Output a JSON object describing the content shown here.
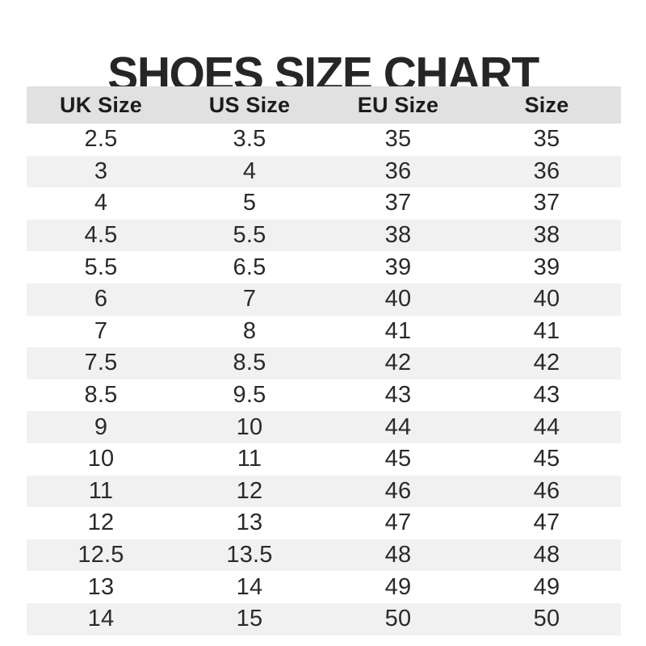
{
  "title": "SHOES SIZE CHART",
  "colors": {
    "header_bg": "#e1e1e1",
    "stripe_bg": "#f1f1f1",
    "row_bg": "#ffffff",
    "title_text": "#262626",
    "body_text": "#2a2a2e"
  },
  "chart_data": {
    "type": "table",
    "title": "SHOES SIZE CHART",
    "columns": [
      "UK Size",
      "US Size",
      "EU Size",
      "Size"
    ],
    "rows": [
      [
        "2.5",
        "3.5",
        "35",
        "35"
      ],
      [
        "3",
        "4",
        "36",
        "36"
      ],
      [
        "4",
        "5",
        "37",
        "37"
      ],
      [
        "4.5",
        "5.5",
        "38",
        "38"
      ],
      [
        "5.5",
        "6.5",
        "39",
        "39"
      ],
      [
        "6",
        "7",
        "40",
        "40"
      ],
      [
        "7",
        "8",
        "41",
        "41"
      ],
      [
        "7.5",
        "8.5",
        "42",
        "42"
      ],
      [
        "8.5",
        "9.5",
        "43",
        "43"
      ],
      [
        "9",
        "10",
        "44",
        "44"
      ],
      [
        "10",
        "11",
        "45",
        "45"
      ],
      [
        "11",
        "12",
        "46",
        "46"
      ],
      [
        "12",
        "13",
        "47",
        "47"
      ],
      [
        "12.5",
        "13.5",
        "48",
        "48"
      ],
      [
        "13",
        "14",
        "49",
        "49"
      ],
      [
        "14",
        "15",
        "50",
        "50"
      ]
    ],
    "layout": {
      "striped": true,
      "stripe_pattern": "even rows shaded",
      "alignment": "center",
      "gridlines": false
    }
  }
}
